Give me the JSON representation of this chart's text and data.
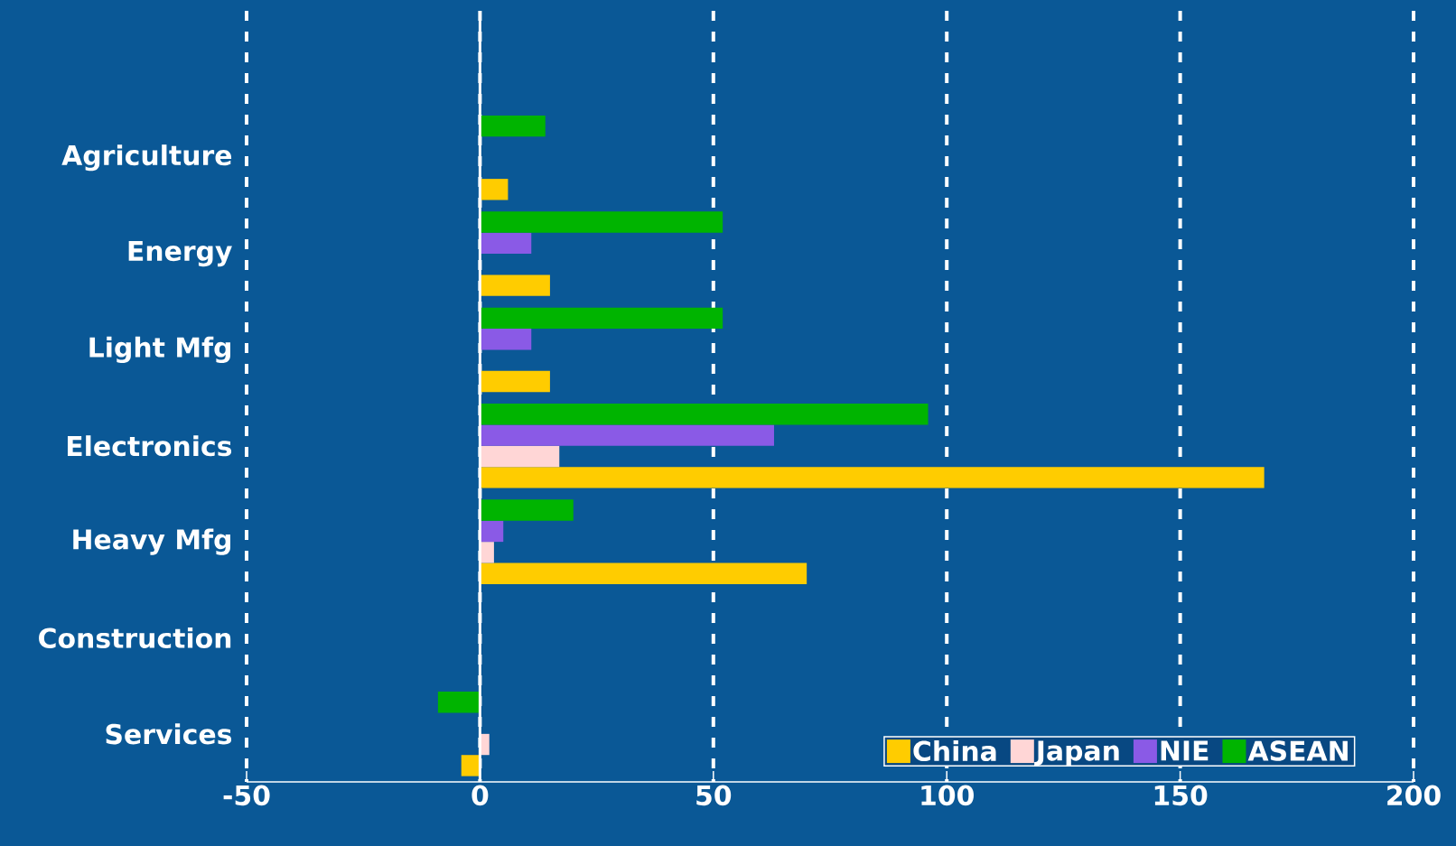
{
  "chart_data": {
    "type": "bar",
    "orientation": "horizontal",
    "categories": [
      "Agriculture",
      "Energy",
      "Light Mfg",
      "Electronics",
      "Heavy Mfg",
      "Construction",
      "Services"
    ],
    "series": [
      {
        "name": "China",
        "color": "#ffcc00",
        "values": [
          6,
          15,
          15,
          168,
          70,
          null,
          -4
        ]
      },
      {
        "name": "Japan",
        "color": "#ffd6d6",
        "values": [
          null,
          null,
          null,
          17,
          3,
          null,
          2
        ]
      },
      {
        "name": "NIE",
        "color": "#8a5ae6",
        "values": [
          null,
          11,
          11,
          63,
          5,
          null,
          null
        ]
      },
      {
        "name": "ASEAN",
        "color": "#00b400",
        "values": [
          14,
          52,
          52,
          96,
          20,
          null,
          -9
        ]
      }
    ],
    "xlim": [
      -50,
      200
    ],
    "xticks": [
      -50,
      0,
      50,
      100,
      150,
      200
    ],
    "grid": "x",
    "legend": "bottom right",
    "ref_lines": [
      {
        "axis": "x",
        "value": 0,
        "color": "#ffffff"
      }
    ]
  }
}
